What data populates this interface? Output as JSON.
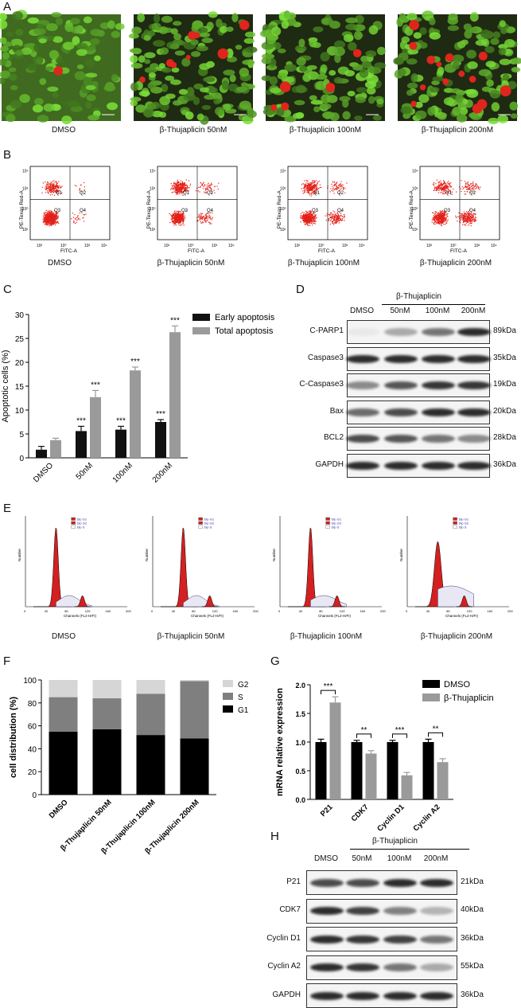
{
  "panels": {
    "A": "A",
    "B": "B",
    "C": "C",
    "D": "D",
    "E": "E",
    "F": "F",
    "G": "G",
    "H": "H"
  },
  "conditions": [
    "DMSO",
    "β-Thujaplicin 50nM",
    "β-Thujaplicin 100nM",
    "β-Thujaplicin 200nM"
  ],
  "flow": {
    "xlabel": "FITC-A",
    "ylabel": "PE-Texas Red-A",
    "quadrants": [
      "Q1",
      "Q2",
      "Q3",
      "Q4"
    ],
    "ticks_x": [
      "10²",
      "10⁰",
      "10³",
      "10⁴"
    ],
    "ticks_y": [
      "10⁴",
      "10³",
      "10⁰",
      "10²"
    ]
  },
  "blot_D": {
    "header": "β-Thujaplicin",
    "lanes": [
      "DMSO",
      "50nM",
      "100nM",
      "200nM"
    ],
    "rows": [
      {
        "name": "C-PARP1",
        "kda": "89kDa"
      },
      {
        "name": "Caspase3",
        "kda": "35kDa"
      },
      {
        "name": "C-Caspase3",
        "kda": "19kDa"
      },
      {
        "name": "Bax",
        "kda": "20kDa"
      },
      {
        "name": "BCL2",
        "kda": "28kDa"
      },
      {
        "name": "GAPDH",
        "kda": "36kDa"
      }
    ]
  },
  "blot_H": {
    "header": "β-Thujaplicin",
    "lanes": [
      "DMSO",
      "50nM",
      "100nM",
      "200nM"
    ],
    "rows": [
      {
        "name": "P21",
        "kda": "21kDa"
      },
      {
        "name": "CDK7",
        "kda": "40kDa"
      },
      {
        "name": "Cyclin D1",
        "kda": "36kDa"
      },
      {
        "name": "Cyclin A2",
        "kda": "55kDa"
      },
      {
        "name": "GAPDH",
        "kda": "36kDa"
      }
    ]
  },
  "cellcycle": {
    "legend": [
      "Dip G1",
      "Dip G2",
      "Dip S"
    ],
    "xlabel": "Channels (FL2-H/FI)",
    "ylabel": "Number",
    "xticks": [
      "0",
      "40",
      "80",
      "120",
      "160",
      "200"
    ]
  },
  "chart_data": [
    {
      "id": "C",
      "type": "bar",
      "categories": [
        "DMSO",
        "50nM",
        "100nM",
        "200nM"
      ],
      "series": [
        {
          "name": "Early apoptosis",
          "color": "#111111",
          "values": [
            1.7,
            5.6,
            5.9,
            7.5
          ],
          "errors": [
            0.7,
            1.0,
            0.7,
            0.5
          ],
          "sig": [
            "",
            "***",
            "***",
            "***"
          ]
        },
        {
          "name": "Total apoptosis",
          "color": "#9a9a9a",
          "values": [
            3.7,
            12.7,
            18.3,
            26.3
          ],
          "errors": [
            0.4,
            1.4,
            0.7,
            1.3
          ],
          "sig": [
            "",
            "***",
            "***",
            "***"
          ]
        }
      ],
      "ylabel": "Apoptotic cells (%)",
      "ylim": [
        0,
        30
      ],
      "yticks": [
        0,
        5,
        10,
        15,
        20,
        25,
        30
      ]
    },
    {
      "id": "F",
      "type": "bar",
      "stacked": true,
      "categories": [
        "DMSO",
        "β-Thujaplicin 50nM",
        "β-Thujaplicin 100nM",
        "β-Thujaplicin 200nM"
      ],
      "series": [
        {
          "name": "G1",
          "color": "#000000",
          "values": [
            55,
            57,
            52,
            49
          ]
        },
        {
          "name": "S",
          "color": "#7f7f7f",
          "values": [
            30,
            27,
            36,
            50
          ]
        },
        {
          "name": "G2",
          "color": "#d6d6d6",
          "values": [
            15,
            16,
            12,
            1
          ]
        }
      ],
      "legend_order": [
        "G2",
        "S",
        "G1"
      ],
      "ylabel": "cell distribution (%)",
      "ylim": [
        0,
        100
      ],
      "yticks": [
        0,
        20,
        40,
        60,
        80,
        100
      ]
    },
    {
      "id": "G",
      "type": "bar",
      "categories": [
        "P21",
        "CDK7",
        "Cyclin D1",
        "Cyclin A2"
      ],
      "series": [
        {
          "name": "DMSO",
          "color": "#000000",
          "values": [
            1.0,
            1.0,
            1.0,
            1.0
          ],
          "errors": [
            0.05,
            0.03,
            0.03,
            0.05
          ]
        },
        {
          "name": "β-Thujaplicin",
          "color": "#9a9a9a",
          "values": [
            1.69,
            0.8,
            0.42,
            0.65
          ],
          "errors": [
            0.1,
            0.05,
            0.05,
            0.06
          ]
        }
      ],
      "sig": [
        "***",
        "**",
        "***",
        "**"
      ],
      "ylabel": "mRNA relative expression",
      "ylim": [
        0,
        2.0
      ],
      "yticks": [
        "0.0",
        "0.5",
        "1.0",
        "1.5",
        "2.0"
      ]
    }
  ]
}
